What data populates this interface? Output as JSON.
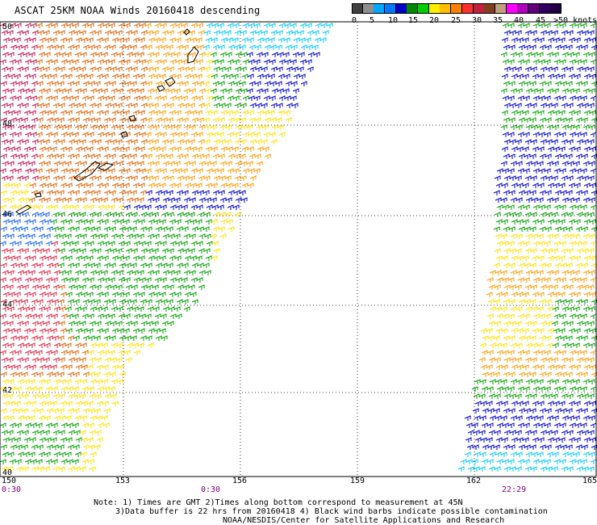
{
  "title": "ASCAT 25KM NOAA Winds 20160418 descending",
  "colorbar": {
    "colors": [
      "#404040",
      "#909090",
      "#00a8ff",
      "#0078ff",
      "#0000c8",
      "#008800",
      "#00cc00",
      "#ffee00",
      "#ffbf00",
      "#ff8000",
      "#ff3030",
      "#c02040",
      "#804020",
      "#c0a080",
      "#ff00ff",
      "#b000c0",
      "#600080",
      "#300060",
      "#200040"
    ],
    "labels": [
      "0",
      "5",
      "10",
      "15",
      "20",
      "25",
      "30",
      "35",
      "40",
      "45",
      ">50 knots"
    ]
  },
  "lat_labels": [
    "50",
    "48",
    "46",
    "44",
    "42",
    "40"
  ],
  "lon_labels": [
    "150",
    "153",
    "156",
    "159",
    "162",
    "165"
  ],
  "time_labels": [
    "0:30",
    "0:30",
    "22:29"
  ],
  "notes": [
    "Note: 1) Times are GMT 2)Times along bottom correspond to measurement at 45N",
    "3)Data buffer is 22 hrs from 20160418 4) Black wind barbs indicate possible contamination",
    "NOAA/NESDIS/Center for Satellite Applications and Research"
  ],
  "wind_colors": {
    "lt_blue": "#00c8ff",
    "blue": "#0000cc",
    "mid_blue": "#1060ff",
    "green": "#00a000",
    "lt_green": "#00d000",
    "yellow": "#ffe000",
    "orange": "#ff9900",
    "dk_orange": "#e06000",
    "red": "#e02040",
    "crimson": "#c01050",
    "black": "#000000"
  }
}
